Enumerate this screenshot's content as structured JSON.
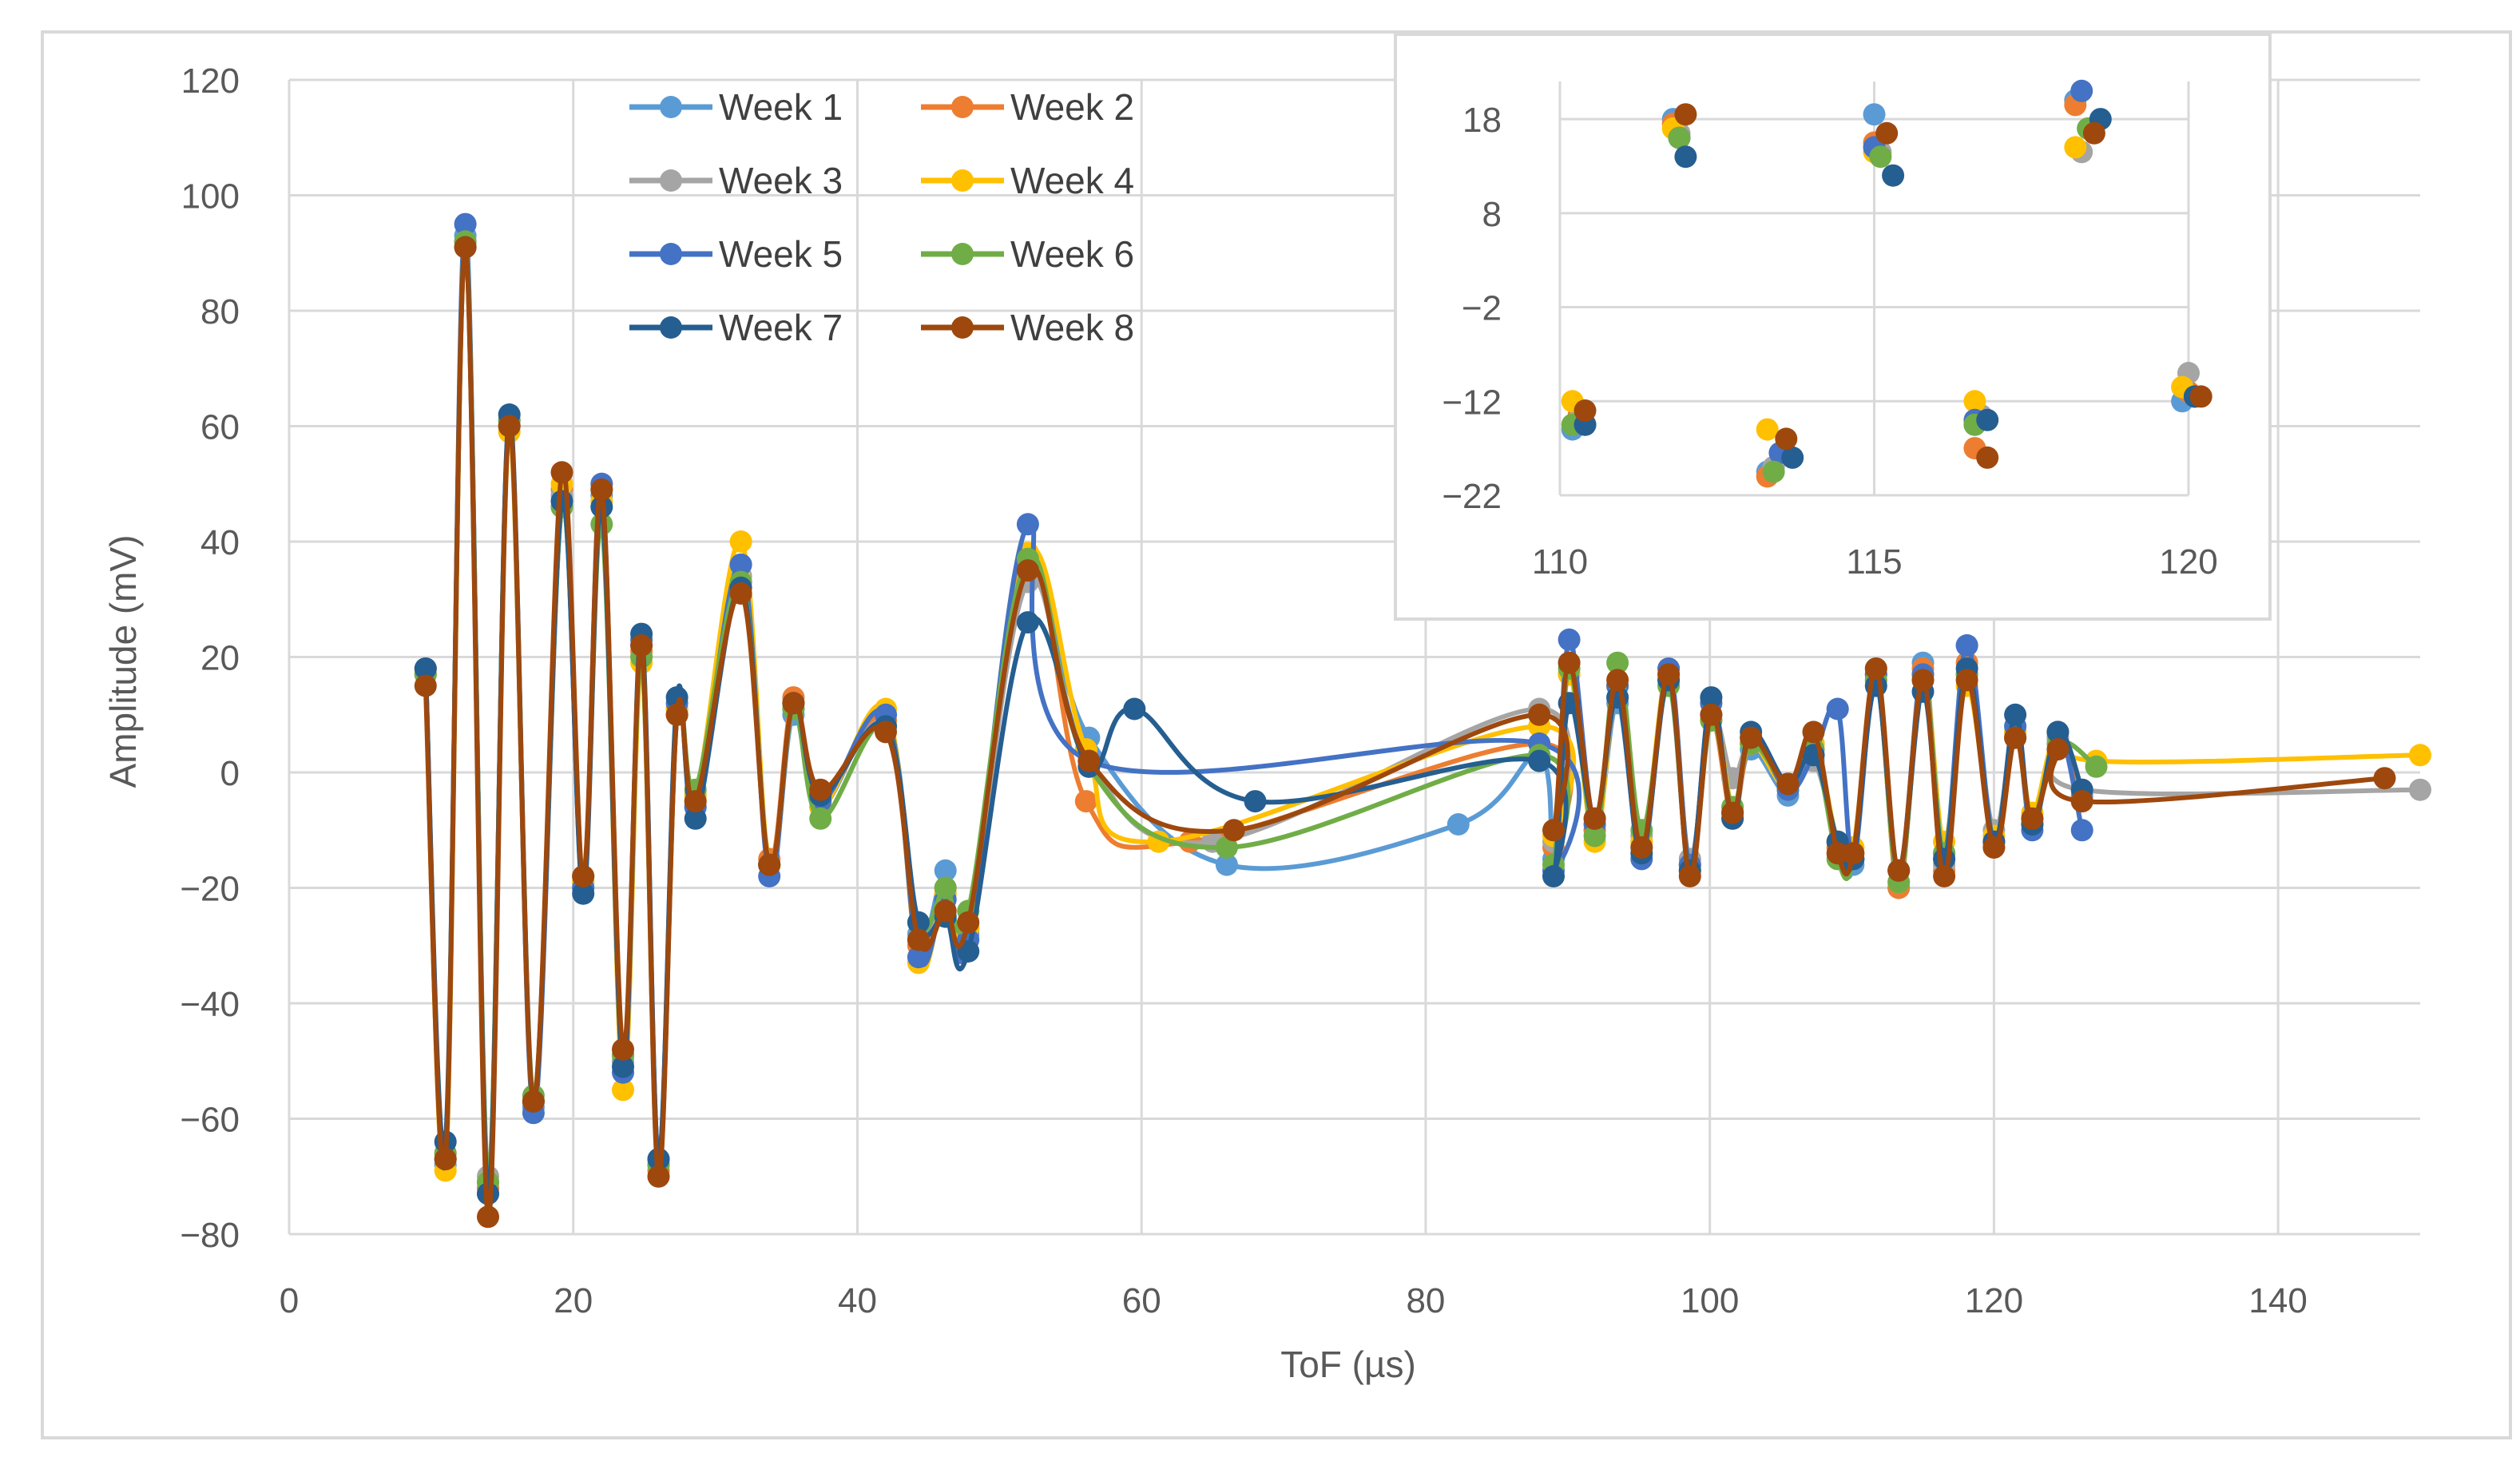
{
  "chart_data": [
    {
      "id": "main",
      "type": "line",
      "title": "",
      "xlabel": "ToF (µs)",
      "ylabel": "Amplitude (mV)",
      "xlim": [
        0,
        150
      ],
      "ylim": [
        -80,
        120
      ],
      "xticks": [
        0,
        20,
        40,
        60,
        80,
        100,
        120,
        140
      ],
      "yticks": [
        -80,
        -60,
        -40,
        -20,
        0,
        20,
        40,
        60,
        80,
        100,
        120
      ],
      "grid": true,
      "legend_position": "top-left",
      "series": [
        {
          "name": "Week 1",
          "color": "#5B9BD5",
          "x": [
            9.6,
            11,
            12.4,
            14,
            15.5,
            17.2,
            19.2,
            20.7,
            22,
            23.5,
            24.8,
            26,
            27.3,
            28.6,
            31.8,
            33.8,
            35.5,
            37.4,
            42,
            44.3,
            46.2,
            47.8,
            52,
            56.3,
            66,
            82.3,
            88,
            89,
            90.1,
            91.9,
            93.5,
            95.2,
            97.1,
            98.6,
            100.1,
            101.6,
            102.9,
            105.5,
            107.3,
            109,
            110.1,
            111.7,
            113.3,
            115,
            116.5,
            118.1,
            120,
            121.5,
            122.7,
            124.5,
            126.2
          ],
          "y": [
            17,
            -68,
            93,
            -71,
            60,
            -58,
            47,
            -20,
            48,
            -50,
            22,
            -68,
            11,
            -6,
            36,
            -16,
            10,
            -6,
            10,
            -28,
            -17,
            -28,
            35,
            6,
            -16,
            -9,
            3,
            -15,
            19,
            -10,
            12,
            -13,
            16,
            -16,
            10,
            -7,
            4,
            -4,
            2,
            -12,
            -16,
            18,
            -20,
            19,
            -15,
            22,
            -12,
            7,
            -9,
            6,
            -4
          ]
        },
        {
          "name": "Week 2",
          "color": "#ED7D31",
          "x": [
            9.6,
            11,
            12.4,
            14,
            15.5,
            17.2,
            19.2,
            20.7,
            22,
            23.5,
            24.8,
            26,
            27.3,
            28.6,
            31.8,
            33.8,
            35.5,
            37.4,
            42,
            44.3,
            46.2,
            47.8,
            52,
            56.1,
            63.4,
            88,
            89,
            90.1,
            91.9,
            93.5,
            95.2,
            97.1,
            98.6,
            100.1,
            101.6,
            102.9,
            105.5,
            107.3,
            109,
            110.1,
            111.7,
            113.3,
            115,
            116.5,
            118.1,
            120,
            121.5,
            122.7,
            124.5,
            126.2
          ],
          "y": [
            18,
            -66,
            92,
            -72,
            61,
            -57,
            49,
            -18,
            50,
            -49,
            21,
            -69,
            10,
            -5,
            33,
            -15,
            13,
            -5,
            9,
            -30,
            -20,
            -26,
            38,
            -5,
            -12,
            5,
            -13,
            17,
            -10,
            15,
            -12,
            17,
            -16,
            9,
            -8,
            5,
            -2,
            5,
            -13,
            -14,
            17,
            -20,
            18,
            -17,
            19,
            -13,
            6,
            -8,
            7,
            -5
          ]
        },
        {
          "name": "Week 3",
          "color": "#A5A5A5",
          "x": [
            9.6,
            11,
            12.4,
            14,
            15.5,
            17.2,
            19.2,
            20.7,
            22,
            23.5,
            24.8,
            26,
            27.3,
            28.6,
            31.8,
            33.8,
            35.5,
            37.4,
            42,
            44.3,
            46.2,
            47.8,
            52,
            56.3,
            65,
            88,
            89,
            90.1,
            91.9,
            93.5,
            95.2,
            97.1,
            98.6,
            100.1,
            101.6,
            102.9,
            105.5,
            107.3,
            109,
            110.1,
            111.7,
            113.3,
            115,
            116.5,
            118.1,
            120,
            121.5,
            122.7,
            124.5,
            126.2,
            150
          ],
          "y": [
            17,
            -67,
            92,
            -70,
            60,
            -57,
            48,
            -19,
            49,
            -50,
            20,
            -70,
            11,
            -4,
            34,
            -16,
            11,
            -4,
            8,
            -29,
            -21,
            -27,
            33,
            2,
            -12,
            11,
            -12,
            17,
            -9,
            13,
            -11,
            16,
            -15,
            10,
            -1,
            5,
            -2,
            2,
            -12,
            -15,
            17,
            -19,
            17,
            -16,
            17,
            -10,
            8,
            -9,
            6,
            -3,
            -3
          ]
        },
        {
          "name": "Week 4",
          "color": "#FFC000",
          "x": [
            9.6,
            11,
            12.4,
            14,
            15.5,
            17.2,
            19.2,
            20.7,
            22,
            23.5,
            24.8,
            26,
            27.3,
            28.6,
            31.8,
            33.8,
            35.5,
            37.4,
            42,
            44.3,
            46.2,
            47.8,
            52,
            56.1,
            61.2,
            88,
            89,
            90.1,
            91.9,
            93.5,
            95.2,
            97.1,
            98.6,
            100.1,
            101.6,
            102.9,
            105.5,
            107.3,
            109,
            110.1,
            111.7,
            113.3,
            115,
            116.5,
            118.1,
            120,
            121.5,
            122.7,
            124.5,
            127.2,
            150
          ],
          "y": [
            17,
            -69,
            91,
            -71,
            59,
            -57,
            50,
            -19,
            47,
            -55,
            19,
            -68,
            11,
            -4,
            40,
            -16,
            12,
            -6,
            11,
            -33,
            -21,
            -27,
            38,
            4,
            -12,
            8,
            -11,
            17,
            -12,
            15,
            -12,
            18,
            -16,
            12,
            -6,
            5,
            -3,
            5,
            -12,
            -13,
            16,
            -19,
            17,
            -12,
            15,
            -11,
            7,
            -7,
            7,
            2,
            3
          ]
        },
        {
          "name": "Week 5",
          "color": "#4472C4",
          "x": [
            9.6,
            11,
            12.4,
            14,
            15.5,
            17.2,
            19.2,
            20.7,
            22,
            23.5,
            24.8,
            26,
            27.3,
            28.6,
            31.8,
            33.8,
            35.5,
            37.4,
            42,
            44.3,
            46.2,
            47.8,
            52,
            56.3,
            88,
            89,
            90.1,
            91.9,
            93.5,
            95.2,
            97.1,
            98.6,
            100.1,
            101.6,
            102.9,
            105.5,
            107.3,
            109,
            110.1,
            111.7,
            113.3,
            115,
            116.5,
            118.1,
            120,
            121.5,
            122.7,
            124.5,
            126.2
          ],
          "y": [
            18,
            -67,
            95,
            -73,
            61,
            -59,
            46,
            -20,
            50,
            -52,
            23,
            -67,
            12,
            -6,
            36,
            -18,
            12,
            -5,
            10,
            -32,
            -22,
            -29,
            43,
            2,
            5,
            -17,
            23,
            -9,
            15,
            -15,
            18,
            -16,
            12,
            -7,
            6,
            -3,
            3,
            11,
            -15,
            17,
            -17,
            17,
            -14,
            22,
            -12,
            8,
            -10,
            7,
            -10
          ]
        },
        {
          "name": "Week 6",
          "color": "#70AD47",
          "x": [
            9.6,
            11,
            12.4,
            14,
            15.5,
            17.2,
            19.2,
            20.7,
            22,
            23.5,
            24.8,
            26,
            27.3,
            28.6,
            31.8,
            33.8,
            35.5,
            37.4,
            42,
            44.3,
            46.2,
            47.8,
            52,
            56.3,
            66,
            88,
            89,
            90.1,
            91.9,
            93.5,
            95.2,
            97.1,
            98.6,
            100.1,
            101.6,
            102.9,
            105.5,
            107.3,
            109,
            110.1,
            111.7,
            113.3,
            115,
            116.5,
            118.1,
            120,
            121.5,
            122.7,
            124.5,
            127.2
          ],
          "y": [
            17,
            -66,
            92,
            -71,
            61,
            -56,
            46,
            -18,
            43,
            -49,
            20,
            -68,
            10,
            -3,
            33,
            -16,
            11,
            -8,
            8,
            -26,
            -20,
            -24,
            37,
            1,
            -13,
            3,
            -16,
            18,
            -11,
            19,
            -10,
            15,
            -17,
            9,
            -6,
            5,
            -2,
            4,
            -15,
            -15,
            16,
            -19,
            16,
            -14,
            17,
            -12,
            6,
            -8,
            5,
            1
          ]
        },
        {
          "name": "Week 7",
          "color": "#255E91",
          "x": [
            9.6,
            11,
            12.4,
            14,
            15.5,
            17.2,
            19.2,
            20.7,
            22,
            23.5,
            24.8,
            26,
            27.3,
            28.6,
            31.8,
            33.8,
            35.5,
            37.4,
            42,
            44.3,
            46.2,
            47.8,
            52,
            56.3,
            59.5,
            68,
            88,
            89,
            90.1,
            91.9,
            93.5,
            95.2,
            97.1,
            98.6,
            100.1,
            101.6,
            102.9,
            105.5,
            107.3,
            109,
            110.1,
            111.7,
            113.3,
            115,
            116.5,
            118.1,
            120,
            121.5,
            122.7,
            124.5,
            126.2
          ],
          "y": [
            18,
            -64,
            91,
            -73,
            62,
            -57,
            47,
            -21,
            46,
            -51,
            24,
            -67,
            13,
            -8,
            32,
            -16,
            12,
            -4,
            8,
            -26,
            -25,
            -31,
            26,
            1,
            11,
            -5,
            2,
            -18,
            12,
            -8,
            13,
            -14,
            16,
            -17,
            13,
            -8,
            7,
            -2,
            3,
            -12,
            -15,
            15,
            -17,
            14,
            -15,
            18,
            -12,
            10,
            -9,
            7,
            -3
          ]
        },
        {
          "name": "Week 8",
          "color": "#9E480E",
          "x": [
            9.6,
            11,
            12.4,
            14,
            15.5,
            17.2,
            19.2,
            20.7,
            22,
            23.5,
            24.8,
            26,
            27.3,
            28.6,
            31.8,
            33.8,
            35.5,
            37.4,
            42,
            44.3,
            46.2,
            47.8,
            52,
            56.3,
            66.5,
            88,
            89,
            90.1,
            91.9,
            93.5,
            95.2,
            97.1,
            98.6,
            100.1,
            101.6,
            102.9,
            105.5,
            107.3,
            109,
            110.1,
            111.7,
            113.3,
            115,
            116.5,
            118.1,
            120,
            121.5,
            122.7,
            124.5,
            126.2,
            147.5
          ],
          "y": [
            15,
            -67,
            91,
            -77,
            60,
            -57,
            52,
            -18,
            49,
            -48,
            22,
            -70,
            10,
            -5,
            31,
            -16,
            12,
            -3,
            7,
            -29,
            -24,
            -26,
            35,
            2,
            -10,
            10,
            -10,
            19,
            -8,
            16,
            -13,
            17,
            -18,
            10,
            -7,
            6,
            -2,
            7,
            -14,
            -14,
            18,
            -17,
            16,
            -18,
            16,
            -13,
            6,
            -8,
            4,
            -5,
            -1
          ]
        }
      ]
    },
    {
      "id": "inset",
      "type": "scatter",
      "title": "",
      "xlim": [
        110,
        120
      ],
      "ylim": [
        -22,
        22
      ],
      "xticks": [
        110,
        115,
        120
      ],
      "yticks": [
        18,
        8,
        -2,
        -12,
        -22
      ],
      "grid": true,
      "series": [
        {
          "name": "Week 1",
          "color": "#5B9BD5",
          "x": [
            110.2,
            111.8,
            113.3,
            115,
            116.6,
            118.2,
            119.9
          ],
          "y": [
            -15,
            18,
            -19.5,
            18.5,
            -14.5,
            20,
            -12
          ]
        },
        {
          "name": "Week 2",
          "color": "#ED7D31",
          "x": [
            110.3,
            111.8,
            113.3,
            115,
            116.6,
            118.2,
            120
          ],
          "y": [
            -13.5,
            17.5,
            -20,
            15.5,
            -17,
            19.5,
            -11
          ]
        },
        {
          "name": "Week 3",
          "color": "#A5A5A5",
          "x": [
            110.3,
            111.9,
            113.4,
            115.1,
            116.7,
            118.3,
            120
          ],
          "y": [
            -14,
            16.5,
            -19,
            14.5,
            -13.5,
            14.5,
            -9
          ]
        },
        {
          "name": "Week 4",
          "color": "#FFC000",
          "x": [
            110.2,
            111.8,
            113.3,
            115,
            116.6,
            118.2,
            119.9
          ],
          "y": [
            -12,
            17,
            -15,
            14.5,
            -12,
            15,
            -10.5
          ]
        },
        {
          "name": "Week 5",
          "color": "#4472C4",
          "x": [
            110.4,
            111.9,
            113.5,
            115,
            116.6,
            118.3,
            120.1
          ],
          "y": [
            -14.5,
            16,
            -17.5,
            15,
            -14,
            21,
            -11.5
          ]
        },
        {
          "name": "Week 6",
          "color": "#70AD47",
          "x": [
            110.2,
            111.9,
            113.4,
            115.1,
            116.6,
            118.4,
            120.1
          ],
          "y": [
            -14.5,
            16,
            -19.5,
            14,
            -14.5,
            17,
            -11.5
          ]
        },
        {
          "name": "Week 7",
          "color": "#255E91",
          "x": [
            110.4,
            112,
            113.7,
            115.3,
            116.8,
            118.6,
            120.1
          ],
          "y": [
            -14.5,
            14,
            -18,
            12,
            -14,
            18,
            -11.5
          ]
        },
        {
          "name": "Week 8",
          "color": "#9E480E",
          "x": [
            110.4,
            112,
            113.6,
            115.2,
            116.8,
            118.5,
            120.2
          ],
          "y": [
            -13,
            18.5,
            -16,
            16.5,
            -18,
            16.5,
            -11.5
          ]
        }
      ]
    }
  ]
}
